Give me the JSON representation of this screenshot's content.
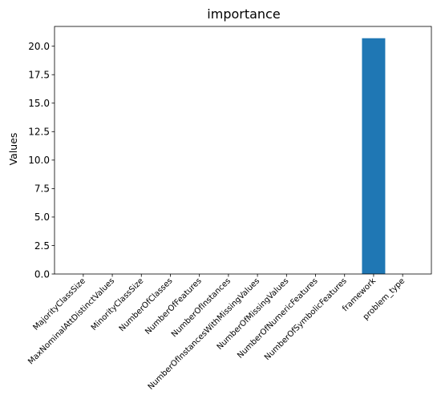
{
  "chart_data": {
    "type": "bar",
    "title": "importance",
    "xlabel": "",
    "ylabel": "Values",
    "categories": [
      "MajorityClassSize",
      "MaxNominalAttDistinctValues",
      "MinorityClassSize",
      "NumberOfClasses",
      "NumberOfFeatures",
      "NumberOfInstances",
      "NumberOfInstancesWithMissingValues",
      "NumberOfMissingValues",
      "NumberOfNumericFeatures",
      "NumberOfSymbolicFeatures",
      "framework",
      "problem_type"
    ],
    "values": [
      0,
      0,
      0,
      0,
      0,
      0,
      0,
      0,
      0,
      0,
      20.7,
      0
    ],
    "ylim": [
      0,
      21.735
    ],
    "yticks": [
      "0.0",
      "2.5",
      "5.0",
      "7.5",
      "10.0",
      "12.5",
      "15.0",
      "17.5",
      "20.0"
    ],
    "grid": false,
    "bar_color": "#1f77b4"
  }
}
